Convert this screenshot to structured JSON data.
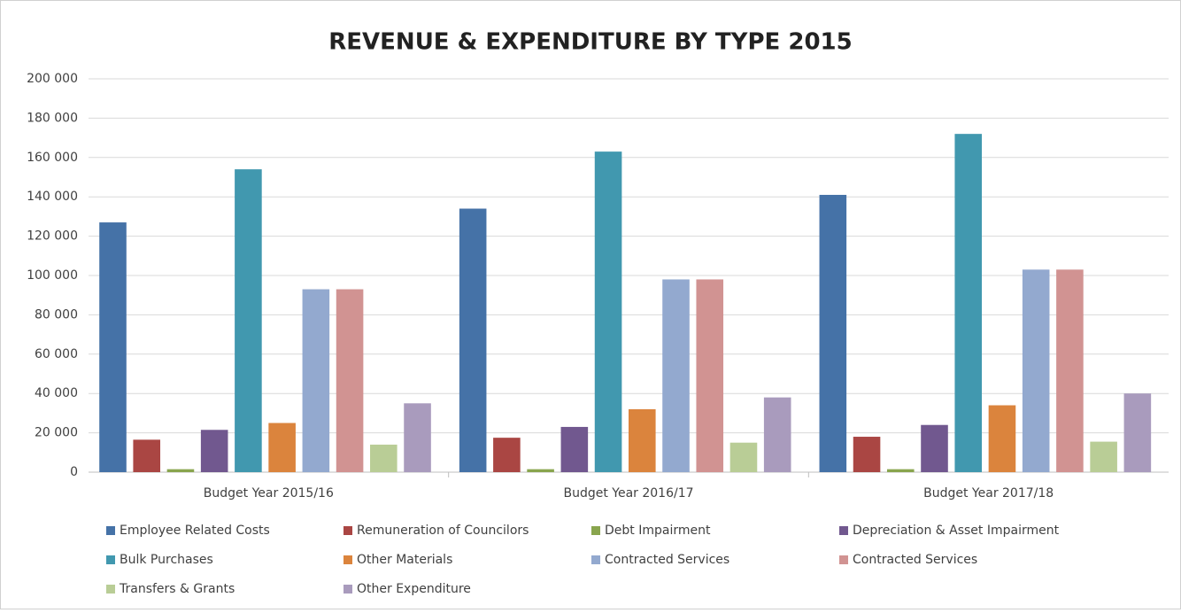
{
  "chart_data": {
    "type": "bar",
    "title": "REVENUE & EXPENDITURE BY TYPE 2015",
    "categories": [
      "Budget Year 2015/16",
      "Budget Year 2016/17",
      "Budget Year 2017/18"
    ],
    "series": [
      {
        "name": "Employee Related Costs",
        "color": "#4572a7",
        "values": [
          127000,
          134000,
          141000
        ]
      },
      {
        "name": "Remuneration of Councilors",
        "color": "#aa4643",
        "values": [
          16500,
          17500,
          18000
        ]
      },
      {
        "name": "Debt Impairment",
        "color": "#89a54e",
        "values": [
          1500,
          1500,
          1500
        ]
      },
      {
        "name": "Depreciation & Asset Impairment",
        "color": "#71588f",
        "values": [
          21500,
          23000,
          24000
        ]
      },
      {
        "name": "Bulk Purchases",
        "color": "#4198af",
        "values": [
          154000,
          163000,
          172000
        ]
      },
      {
        "name": "Other Materials",
        "color": "#db843d",
        "values": [
          25000,
          32000,
          34000
        ]
      },
      {
        "name": "Contracted Services",
        "color": "#93a9cf",
        "values": [
          93000,
          98000,
          103000
        ]
      },
      {
        "name": "Contracted Services",
        "color": "#d19392",
        "values": [
          93000,
          98000,
          103000
        ]
      },
      {
        "name": "Transfers & Grants",
        "color": "#b9cd96",
        "values": [
          14000,
          15000,
          15500
        ]
      },
      {
        "name": "Other Expenditure",
        "color": "#a99bbd",
        "values": [
          35000,
          38000,
          40000
        ]
      }
    ],
    "ylim": [
      0,
      200000
    ],
    "yticks": [
      0,
      {
        "value": 20000,
        "label": "20 000"
      },
      {
        "value": 40000,
        "label": "40 000"
      },
      {
        "value": 60000,
        "label": "60 000"
      },
      {
        "value": 80000,
        "label": "80 000"
      },
      {
        "value": 100000,
        "label": "100 000"
      },
      {
        "value": 120000,
        "label": "120 000"
      },
      {
        "value": 140000,
        "label": "140 000"
      },
      {
        "value": 160000,
        "label": "160 000"
      },
      {
        "value": 180000,
        "label": "180 000"
      },
      {
        "value": 200000,
        "label": "200 000"
      }
    ],
    "grid": true,
    "legend": "bottom"
  }
}
